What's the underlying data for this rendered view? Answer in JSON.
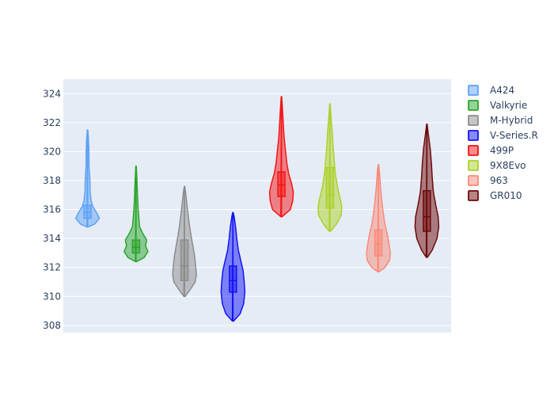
{
  "chart_data": {
    "type": "violin",
    "title": "",
    "xlabel": "",
    "ylabel": "",
    "ylim": [
      307.5,
      325
    ],
    "yticks": [
      308,
      310,
      312,
      314,
      316,
      318,
      320,
      322,
      324
    ],
    "grid": true,
    "legend_position": "right",
    "plot_bg": "#e5ecf6",
    "series": [
      {
        "name": "A424",
        "color": "#5fa2f5",
        "min": 314.8,
        "max": 321.5,
        "q1": 315.4,
        "median": 315.8,
        "q3": 316.3,
        "density": [
          [
            314.8,
            0.05
          ],
          [
            315.0,
            0.6
          ],
          [
            315.4,
            1.0
          ],
          [
            315.8,
            0.75
          ],
          [
            316.2,
            0.45
          ],
          [
            316.6,
            0.3
          ],
          [
            317.2,
            0.22
          ],
          [
            318.0,
            0.2
          ],
          [
            319.0,
            0.12
          ],
          [
            320.0,
            0.12
          ],
          [
            321.0,
            0.07
          ],
          [
            321.5,
            0.02
          ]
        ]
      },
      {
        "name": "Valkyrie",
        "color": "#2ca62c",
        "min": 312.4,
        "max": 319.0,
        "q1": 313.0,
        "median": 313.4,
        "q3": 313.9,
        "density": [
          [
            312.4,
            0.05
          ],
          [
            312.7,
            0.7
          ],
          [
            313.1,
            1.0
          ],
          [
            313.5,
            0.8
          ],
          [
            313.9,
            0.9
          ],
          [
            314.3,
            0.6
          ],
          [
            314.8,
            0.3
          ],
          [
            315.3,
            0.25
          ],
          [
            316.0,
            0.18
          ],
          [
            317.0,
            0.12
          ],
          [
            318.0,
            0.08
          ],
          [
            319.0,
            0.02
          ]
        ]
      },
      {
        "name": "M-Hybrid",
        "color": "#8c8c8c",
        "min": 310.0,
        "max": 317.6,
        "q1": 311.1,
        "median": 312.1,
        "q3": 313.9,
        "density": [
          [
            310.0,
            0.05
          ],
          [
            310.5,
            0.5
          ],
          [
            311.0,
            0.9
          ],
          [
            311.5,
            1.0
          ],
          [
            312.0,
            0.95
          ],
          [
            312.8,
            0.85
          ],
          [
            313.5,
            0.7
          ],
          [
            314.2,
            0.55
          ],
          [
            315.0,
            0.4
          ],
          [
            316.0,
            0.25
          ],
          [
            317.0,
            0.12
          ],
          [
            317.6,
            0.02
          ]
        ]
      },
      {
        "name": "V-Series.R",
        "color": "#1414f5",
        "min": 308.3,
        "max": 315.8,
        "q1": 310.3,
        "median": 311.1,
        "q3": 312.1,
        "density": [
          [
            308.3,
            0.05
          ],
          [
            308.8,
            0.6
          ],
          [
            309.5,
            0.9
          ],
          [
            310.3,
            1.0
          ],
          [
            311.0,
            0.95
          ],
          [
            311.8,
            0.85
          ],
          [
            312.5,
            0.65
          ],
          [
            313.2,
            0.45
          ],
          [
            314.0,
            0.32
          ],
          [
            314.8,
            0.22
          ],
          [
            315.5,
            0.1
          ],
          [
            315.8,
            0.02
          ]
        ]
      },
      {
        "name": "499P",
        "color": "#f51414",
        "min": 315.5,
        "max": 323.8,
        "q1": 316.9,
        "median": 317.7,
        "q3": 318.6,
        "density": [
          [
            315.5,
            0.05
          ],
          [
            316.0,
            0.75
          ],
          [
            316.6,
            0.95
          ],
          [
            317.2,
            1.0
          ],
          [
            317.8,
            0.85
          ],
          [
            318.5,
            0.6
          ],
          [
            319.2,
            0.45
          ],
          [
            320.0,
            0.35
          ],
          [
            321.0,
            0.22
          ],
          [
            322.0,
            0.15
          ],
          [
            323.0,
            0.08
          ],
          [
            323.8,
            0.02
          ]
        ]
      },
      {
        "name": "9X8Evo",
        "color": "#acd12a",
        "min": 314.5,
        "max": 323.3,
        "q1": 316.1,
        "median": 317.0,
        "q3": 318.9,
        "density": [
          [
            314.5,
            0.05
          ],
          [
            315.0,
            0.55
          ],
          [
            315.6,
            0.95
          ],
          [
            316.2,
            1.0
          ],
          [
            316.8,
            0.85
          ],
          [
            317.5,
            0.65
          ],
          [
            318.5,
            0.45
          ],
          [
            319.5,
            0.35
          ],
          [
            320.5,
            0.25
          ],
          [
            321.5,
            0.18
          ],
          [
            322.5,
            0.08
          ],
          [
            323.3,
            0.02
          ]
        ]
      },
      {
        "name": "963",
        "color": "#fa8a78",
        "min": 311.7,
        "max": 319.1,
        "q1": 312.8,
        "median": 313.6,
        "q3": 314.6,
        "density": [
          [
            311.7,
            0.05
          ],
          [
            312.0,
            0.55
          ],
          [
            312.5,
            0.95
          ],
          [
            313.0,
            1.0
          ],
          [
            313.6,
            0.9
          ],
          [
            314.3,
            0.75
          ],
          [
            315.0,
            0.55
          ],
          [
            315.8,
            0.4
          ],
          [
            316.5,
            0.3
          ],
          [
            317.5,
            0.18
          ],
          [
            318.5,
            0.1
          ],
          [
            319.1,
            0.02
          ]
        ]
      },
      {
        "name": "GR010",
        "color": "#6e0a0a",
        "min": 312.7,
        "max": 321.9,
        "q1": 314.5,
        "median": 315.5,
        "q3": 317.3,
        "density": [
          [
            312.7,
            0.05
          ],
          [
            313.2,
            0.45
          ],
          [
            314.0,
            0.85
          ],
          [
            314.8,
            1.0
          ],
          [
            315.5,
            0.95
          ],
          [
            316.3,
            0.75
          ],
          [
            317.2,
            0.55
          ],
          [
            318.2,
            0.45
          ],
          [
            319.2,
            0.38
          ],
          [
            320.2,
            0.28
          ],
          [
            321.2,
            0.12
          ],
          [
            321.9,
            0.02
          ]
        ]
      }
    ]
  }
}
